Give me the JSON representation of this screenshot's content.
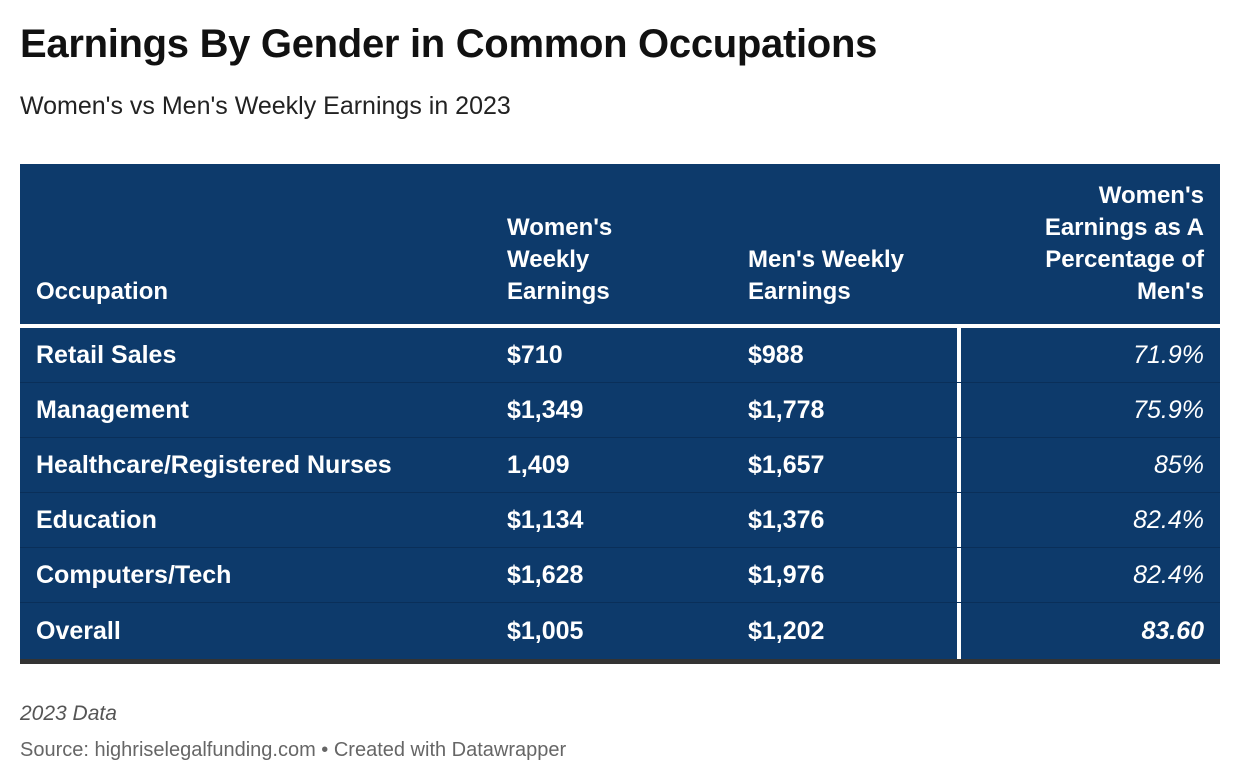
{
  "chart_data": {
    "type": "table",
    "title": "Earnings By Gender in Common Occupations",
    "subtitle": "Women's vs Men's Weekly Earnings in 2023",
    "columns": [
      "Occupation",
      "Women's Weekly Earnings",
      "Men's Weekly Earnings",
      "Women's Earnings as A Percentage of Men's"
    ],
    "rows": [
      {
        "occupation": "Retail Sales",
        "women": "$710",
        "men": "$988",
        "percent": "71.9%"
      },
      {
        "occupation": "Management",
        "women": "$1,349",
        "men": "$1,778",
        "percent": "75.9%"
      },
      {
        "occupation": "Healthcare/Registered Nurses",
        "women": "1,409",
        "men": "$1,657",
        "percent": "85%"
      },
      {
        "occupation": "Education",
        "women": "$1,134",
        "men": "$1,376",
        "percent": "82.4%"
      },
      {
        "occupation": "Computers/Tech",
        "women": "$1,628",
        "men": "$1,976",
        "percent": "82.4%"
      }
    ],
    "total": {
      "occupation": "Overall",
      "women": "$1,005",
      "men": "$1,202",
      "percent": "83.60"
    },
    "notes": "2023 Data",
    "source": "Source: highriselegalfunding.com • Created with Datawrapper"
  },
  "colors": {
    "table_background": "#0d3a6b",
    "text_on_table": "#ffffff",
    "bottom_rule": "#333333"
  }
}
